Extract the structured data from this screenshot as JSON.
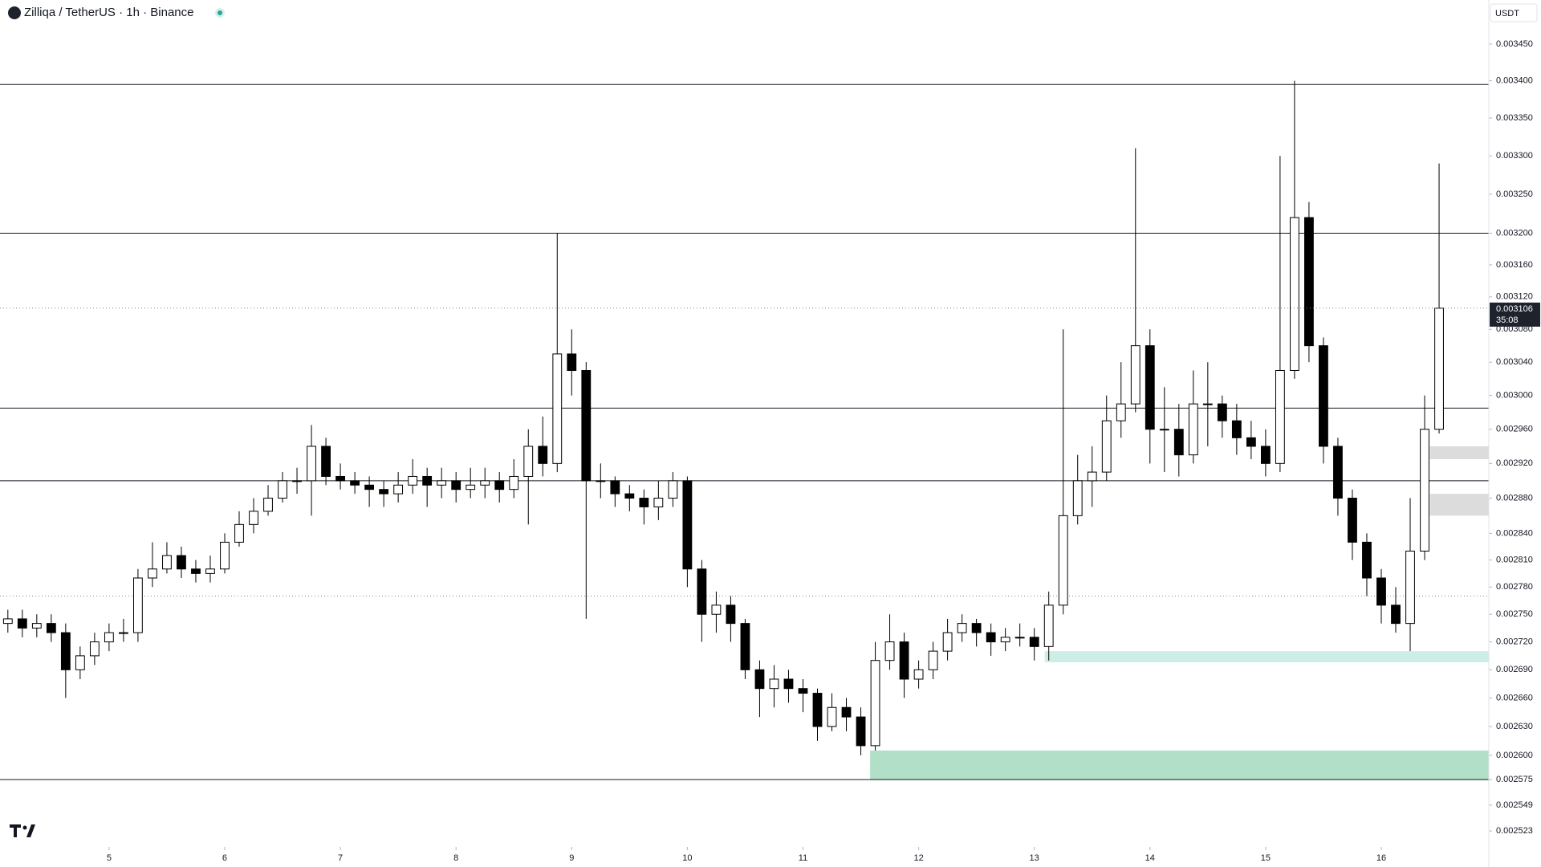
{
  "chart_data": {
    "type": "candlestick",
    "title": "Zilliqa / TetherUS · 1h · Binance",
    "currency": "USDT",
    "countdown": "35:08",
    "log_scale": true,
    "up_color": "#ffffff",
    "down_color": "#000000",
    "xlim": [
      4.057,
      16.93
    ],
    "xticks": [
      5,
      6,
      7,
      8,
      9,
      10,
      11,
      12,
      13,
      14,
      15,
      16
    ],
    "ylim": [
      0.002507,
      0.003511
    ],
    "yticks": [
      {
        "value": 0.00345,
        "label": "0.003450"
      },
      {
        "value": 0.0034,
        "label": "0.003400"
      },
      {
        "value": 0.00335,
        "label": "0.003350"
      },
      {
        "value": 0.0033,
        "label": "0.003300"
      },
      {
        "value": 0.00325,
        "label": "0.003250"
      },
      {
        "value": 0.0032,
        "label": "0.003200"
      },
      {
        "value": 0.00316,
        "label": "0.003160"
      },
      {
        "value": 0.00312,
        "label": "0.003120"
      },
      {
        "value": 0.00308,
        "label": "0.003080"
      },
      {
        "value": 0.00304,
        "label": "0.003040"
      },
      {
        "value": 0.003,
        "label": "0.003000"
      },
      {
        "value": 0.00296,
        "label": "0.002960"
      },
      {
        "value": 0.00292,
        "label": "0.002920"
      },
      {
        "value": 0.00288,
        "label": "0.002880"
      },
      {
        "value": 0.00284,
        "label": "0.002840"
      },
      {
        "value": 0.00281,
        "label": "0.002810"
      },
      {
        "value": 0.00278,
        "label": "0.002780"
      },
      {
        "value": 0.00275,
        "label": "0.002750"
      },
      {
        "value": 0.00272,
        "label": "0.002720"
      },
      {
        "value": 0.00269,
        "label": "0.002690"
      },
      {
        "value": 0.00266,
        "label": "0.002660"
      },
      {
        "value": 0.00263,
        "label": "0.002630"
      },
      {
        "value": 0.0026,
        "label": "0.002600"
      },
      {
        "value": 0.002575,
        "label": "0.002575"
      },
      {
        "value": 0.002549,
        "label": "0.002549"
      },
      {
        "value": 0.002523,
        "label": "0.002523"
      }
    ],
    "horizontal_lines": [
      0.003395,
      0.0032,
      0.002985,
      0.0029,
      0.002575
    ],
    "dotted_lines": [
      0.00277
    ],
    "zones": [
      {
        "from_x": 11.58,
        "bottom": 0.002575,
        "top": 0.002605,
        "color": "#b2dfc7"
      },
      {
        "from_x": 13.09,
        "bottom": 0.002698,
        "top": 0.00271,
        "color": "#cdeee6"
      },
      {
        "from_x": 16.42,
        "bottom": 0.002925,
        "top": 0.00294,
        "color": "#dcdcdc"
      },
      {
        "from_x": 16.42,
        "bottom": 0.00286,
        "top": 0.002885,
        "color": "#dcdcdc"
      }
    ],
    "x": [
      4.125,
      4.25,
      4.375,
      4.5,
      4.625,
      4.75,
      4.875,
      5,
      5.125,
      5.25,
      5.375,
      5.5,
      5.625,
      5.75,
      5.875,
      6,
      6.125,
      6.25,
      6.375,
      6.5,
      6.625,
      6.75,
      6.875,
      7,
      7.125,
      7.25,
      7.375,
      7.5,
      7.625,
      7.75,
      7.875,
      8,
      8.125,
      8.25,
      8.375,
      8.5,
      8.625,
      8.75,
      8.875,
      9,
      9.125,
      9.25,
      9.375,
      9.5,
      9.625,
      9.75,
      9.875,
      10,
      10.125,
      10.25,
      10.375,
      10.5,
      10.625,
      10.75,
      10.875,
      11,
      11.125,
      11.25,
      11.375,
      11.5,
      11.625,
      11.75,
      11.875,
      12,
      12.125,
      12.25,
      12.375,
      12.5,
      12.625,
      12.75,
      12.875,
      13,
      13.125,
      13.25,
      13.375,
      13.5,
      13.625,
      13.75,
      13.875,
      14,
      14.125,
      14.25,
      14.375,
      14.5,
      14.625,
      14.75,
      14.875,
      15,
      15.125,
      15.25,
      15.375,
      15.5,
      15.625,
      15.75,
      15.875,
      16,
      16.125,
      16.25,
      16.375,
      16.5
    ],
    "open": [
      0.00274,
      0.002745,
      0.002735,
      0.00274,
      0.00273,
      0.00269,
      0.002705,
      0.00272,
      0.00273,
      0.00273,
      0.00279,
      0.0028,
      0.002815,
      0.0028,
      0.002795,
      0.0028,
      0.00283,
      0.00285,
      0.002865,
      0.00288,
      0.0029,
      0.0029,
      0.00294,
      0.002905,
      0.0029,
      0.002895,
      0.00289,
      0.002885,
      0.002895,
      0.002905,
      0.002895,
      0.0029,
      0.00289,
      0.002895,
      0.0029,
      0.00289,
      0.002905,
      0.00294,
      0.00292,
      0.00305,
      0.00303,
      0.0029,
      0.0029,
      0.002885,
      0.00288,
      0.00287,
      0.00288,
      0.0029,
      0.0028,
      0.00275,
      0.00276,
      0.00274,
      0.00269,
      0.00267,
      0.00268,
      0.00267,
      0.002665,
      0.00263,
      0.00265,
      0.00264,
      0.00261,
      0.0027,
      0.00272,
      0.00268,
      0.00269,
      0.00271,
      0.00273,
      0.00274,
      0.00273,
      0.00272,
      0.002725,
      0.002725,
      0.002715,
      0.00276,
      0.00286,
      0.0029,
      0.00291,
      0.00297,
      0.00299,
      0.00306,
      0.00296,
      0.00296,
      0.00293,
      0.00299,
      0.00299,
      0.00297,
      0.00295,
      0.00294,
      0.00292,
      0.00303,
      0.00322,
      0.00306,
      0.00294,
      0.00288,
      0.00283,
      0.00279,
      0.00276,
      0.00274,
      0.00282,
      0.00296
    ],
    "high": [
      0.002755,
      0.002755,
      0.00275,
      0.00275,
      0.00274,
      0.002715,
      0.00273,
      0.00274,
      0.002745,
      0.0028,
      0.00283,
      0.00283,
      0.002825,
      0.00281,
      0.002815,
      0.00284,
      0.002865,
      0.00288,
      0.002895,
      0.00291,
      0.002915,
      0.002965,
      0.00295,
      0.00292,
      0.00291,
      0.002905,
      0.0029,
      0.00291,
      0.002925,
      0.002915,
      0.002915,
      0.00291,
      0.002915,
      0.002915,
      0.00291,
      0.002925,
      0.00296,
      0.002975,
      0.0032,
      0.00308,
      0.00304,
      0.00292,
      0.002905,
      0.002895,
      0.00289,
      0.0029,
      0.00291,
      0.002905,
      0.00281,
      0.002775,
      0.00277,
      0.002745,
      0.0027,
      0.002695,
      0.00269,
      0.00268,
      0.00267,
      0.002665,
      0.00266,
      0.00265,
      0.00272,
      0.00275,
      0.00273,
      0.0027,
      0.00272,
      0.002745,
      0.00275,
      0.002745,
      0.00274,
      0.002735,
      0.00274,
      0.002735,
      0.002775,
      0.00308,
      0.00293,
      0.00294,
      0.003,
      0.00304,
      0.00331,
      0.00308,
      0.00301,
      0.00299,
      0.00303,
      0.00304,
      0.003,
      0.00299,
      0.00297,
      0.00296,
      0.0033,
      0.0034,
      0.00324,
      0.00307,
      0.00295,
      0.00289,
      0.00284,
      0.0028,
      0.00278,
      0.00288,
      0.003,
      0.00329
    ],
    "low": [
      0.00273,
      0.002725,
      0.002725,
      0.00272,
      0.00266,
      0.00268,
      0.002695,
      0.00271,
      0.00272,
      0.00272,
      0.00278,
      0.002795,
      0.00279,
      0.002785,
      0.002785,
      0.002795,
      0.002825,
      0.00284,
      0.00286,
      0.002875,
      0.002885,
      0.00286,
      0.002895,
      0.00289,
      0.002885,
      0.00287,
      0.00287,
      0.002875,
      0.002885,
      0.00287,
      0.00288,
      0.002875,
      0.00288,
      0.00288,
      0.002875,
      0.00288,
      0.00285,
      0.002905,
      0.00291,
      0.003,
      0.002745,
      0.00288,
      0.00287,
      0.002865,
      0.00285,
      0.002855,
      0.00287,
      0.00278,
      0.00272,
      0.00273,
      0.00272,
      0.00268,
      0.00264,
      0.00265,
      0.002655,
      0.002645,
      0.002615,
      0.002625,
      0.002625,
      0.0026,
      0.002605,
      0.00269,
      0.00266,
      0.00267,
      0.00268,
      0.0027,
      0.00272,
      0.002715,
      0.002705,
      0.00271,
      0.002715,
      0.0027,
      0.0027,
      0.00275,
      0.00285,
      0.00287,
      0.0029,
      0.00295,
      0.00298,
      0.00292,
      0.00291,
      0.002905,
      0.00292,
      0.00294,
      0.00295,
      0.00293,
      0.002925,
      0.002905,
      0.00291,
      0.00302,
      0.00304,
      0.00292,
      0.00286,
      0.00281,
      0.00277,
      0.00274,
      0.00273,
      0.00271,
      0.00281,
      0.002955
    ],
    "close": [
      0.002745,
      0.002735,
      0.00274,
      0.00273,
      0.00269,
      0.002705,
      0.00272,
      0.00273,
      0.00273,
      0.00279,
      0.0028,
      0.002815,
      0.0028,
      0.002795,
      0.0028,
      0.00283,
      0.00285,
      0.002865,
      0.00288,
      0.0029,
      0.0029,
      0.00294,
      0.002905,
      0.0029,
      0.002895,
      0.00289,
      0.002885,
      0.002895,
      0.002905,
      0.002895,
      0.0029,
      0.00289,
      0.002895,
      0.0029,
      0.00289,
      0.002905,
      0.00294,
      0.00292,
      0.00305,
      0.00303,
      0.0029,
      0.0029,
      0.002885,
      0.00288,
      0.00287,
      0.00288,
      0.0029,
      0.0028,
      0.00275,
      0.00276,
      0.00274,
      0.00269,
      0.00267,
      0.00268,
      0.00267,
      0.002665,
      0.00263,
      0.00265,
      0.00264,
      0.00261,
      0.0027,
      0.00272,
      0.00268,
      0.00269,
      0.00271,
      0.00273,
      0.00274,
      0.00273,
      0.00272,
      0.002725,
      0.002725,
      0.002715,
      0.00276,
      0.00286,
      0.0029,
      0.00291,
      0.00297,
      0.00299,
      0.00306,
      0.00296,
      0.00296,
      0.00293,
      0.00299,
      0.00299,
      0.00297,
      0.00295,
      0.00294,
      0.00292,
      0.00303,
      0.00322,
      0.00306,
      0.00294,
      0.00288,
      0.00283,
      0.00279,
      0.00276,
      0.00274,
      0.00282,
      0.00296,
      0.003106
    ]
  }
}
